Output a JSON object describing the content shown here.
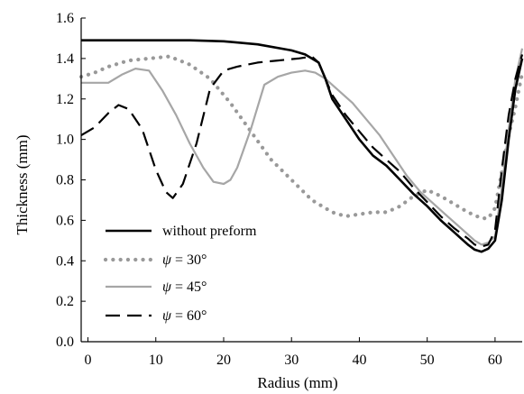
{
  "chart_data": {
    "type": "line",
    "xlabel": "Radius (mm)",
    "ylabel": "Thickness (mm)",
    "xlim": [
      -1,
      64
    ],
    "ylim": [
      0.0,
      1.6
    ],
    "xticks": [
      "0",
      "10",
      "20",
      "30",
      "40",
      "50",
      "60"
    ],
    "yticks": [
      "0.0",
      "0.2",
      "0.4",
      "0.6",
      "0.8",
      "1.0",
      "1.2",
      "1.4",
      "1.6"
    ],
    "grid": false,
    "legend_position": "bottom-left",
    "series": [
      {
        "name": "without preform",
        "color": "#000000",
        "style": "solid",
        "points": [
          [
            -1,
            1.49
          ],
          [
            5,
            1.49
          ],
          [
            10,
            1.49
          ],
          [
            15,
            1.49
          ],
          [
            20,
            1.485
          ],
          [
            25,
            1.47
          ],
          [
            30,
            1.44
          ],
          [
            32,
            1.42
          ],
          [
            34,
            1.38
          ],
          [
            35,
            1.3
          ],
          [
            36,
            1.2
          ],
          [
            38,
            1.1
          ],
          [
            40,
            1.0
          ],
          [
            42,
            0.92
          ],
          [
            44,
            0.87
          ],
          [
            46,
            0.8
          ],
          [
            48,
            0.73
          ],
          [
            50,
            0.67
          ],
          [
            52,
            0.6
          ],
          [
            54,
            0.54
          ],
          [
            56,
            0.48
          ],
          [
            57,
            0.455
          ],
          [
            58,
            0.445
          ],
          [
            59,
            0.46
          ],
          [
            60,
            0.5
          ],
          [
            61,
            0.7
          ],
          [
            62,
            1.0
          ],
          [
            63,
            1.25
          ],
          [
            64,
            1.4
          ]
        ]
      },
      {
        "name": "ψ = 30°",
        "color": "#999999",
        "style": "dotted",
        "points": [
          [
            -1,
            1.31
          ],
          [
            1,
            1.33
          ],
          [
            3,
            1.36
          ],
          [
            6,
            1.39
          ],
          [
            9,
            1.4
          ],
          [
            12,
            1.41
          ],
          [
            15,
            1.37
          ],
          [
            18,
            1.3
          ],
          [
            21,
            1.18
          ],
          [
            24,
            1.04
          ],
          [
            27,
            0.9
          ],
          [
            30,
            0.8
          ],
          [
            33,
            0.7
          ],
          [
            36,
            0.64
          ],
          [
            38,
            0.62
          ],
          [
            40,
            0.63
          ],
          [
            42,
            0.64
          ],
          [
            44,
            0.64
          ],
          [
            46,
            0.67
          ],
          [
            48,
            0.72
          ],
          [
            50,
            0.75
          ],
          [
            52,
            0.72
          ],
          [
            54,
            0.68
          ],
          [
            56,
            0.64
          ],
          [
            58,
            0.61
          ],
          [
            59,
            0.61
          ],
          [
            60,
            0.66
          ],
          [
            61,
            0.84
          ],
          [
            62,
            1.02
          ],
          [
            63,
            1.16
          ],
          [
            64,
            1.33
          ]
        ]
      },
      {
        "name": "ψ = 45°",
        "color": "#a6a6a6",
        "style": "solid",
        "points": [
          [
            -1,
            1.28
          ],
          [
            3,
            1.28
          ],
          [
            5,
            1.32
          ],
          [
            7,
            1.35
          ],
          [
            9,
            1.34
          ],
          [
            11,
            1.24
          ],
          [
            13,
            1.12
          ],
          [
            15,
            0.98
          ],
          [
            17,
            0.86
          ],
          [
            18.5,
            0.79
          ],
          [
            20,
            0.78
          ],
          [
            21,
            0.8
          ],
          [
            22,
            0.86
          ],
          [
            24,
            1.05
          ],
          [
            26,
            1.27
          ],
          [
            28,
            1.31
          ],
          [
            30,
            1.33
          ],
          [
            32,
            1.34
          ],
          [
            33.5,
            1.33
          ],
          [
            35,
            1.3
          ],
          [
            37,
            1.24
          ],
          [
            39,
            1.18
          ],
          [
            41,
            1.1
          ],
          [
            43,
            1.02
          ],
          [
            45,
            0.92
          ],
          [
            47,
            0.82
          ],
          [
            49,
            0.74
          ],
          [
            51,
            0.68
          ],
          [
            53,
            0.62
          ],
          [
            55,
            0.56
          ],
          [
            57,
            0.5
          ],
          [
            58,
            0.48
          ],
          [
            59,
            0.49
          ],
          [
            60,
            0.52
          ],
          [
            61,
            0.76
          ],
          [
            62,
            1.05
          ],
          [
            63,
            1.3
          ],
          [
            64,
            1.45
          ]
        ]
      },
      {
        "name": "ψ = 60°",
        "color": "#000000",
        "style": "dashed",
        "points": [
          [
            -1,
            1.02
          ],
          [
            1,
            1.06
          ],
          [
            3,
            1.13
          ],
          [
            4.5,
            1.17
          ],
          [
            6,
            1.15
          ],
          [
            8,
            1.05
          ],
          [
            10,
            0.85
          ],
          [
            11.5,
            0.74
          ],
          [
            12.5,
            0.71
          ],
          [
            14,
            0.78
          ],
          [
            16,
            0.98
          ],
          [
            18,
            1.25
          ],
          [
            20,
            1.34
          ],
          [
            22,
            1.36
          ],
          [
            25,
            1.38
          ],
          [
            28,
            1.39
          ],
          [
            31,
            1.4
          ],
          [
            33,
            1.41
          ],
          [
            34,
            1.38
          ],
          [
            35,
            1.3
          ],
          [
            36,
            1.22
          ],
          [
            38,
            1.12
          ],
          [
            40,
            1.04
          ],
          [
            42,
            0.96
          ],
          [
            44,
            0.9
          ],
          [
            46,
            0.84
          ],
          [
            48,
            0.76
          ],
          [
            50,
            0.69
          ],
          [
            52,
            0.62
          ],
          [
            54,
            0.56
          ],
          [
            56,
            0.51
          ],
          [
            57,
            0.48
          ],
          [
            58,
            0.47
          ],
          [
            59,
            0.48
          ],
          [
            60,
            0.55
          ],
          [
            61,
            0.85
          ],
          [
            62,
            1.12
          ],
          [
            63,
            1.3
          ],
          [
            64,
            1.42
          ]
        ]
      }
    ]
  }
}
